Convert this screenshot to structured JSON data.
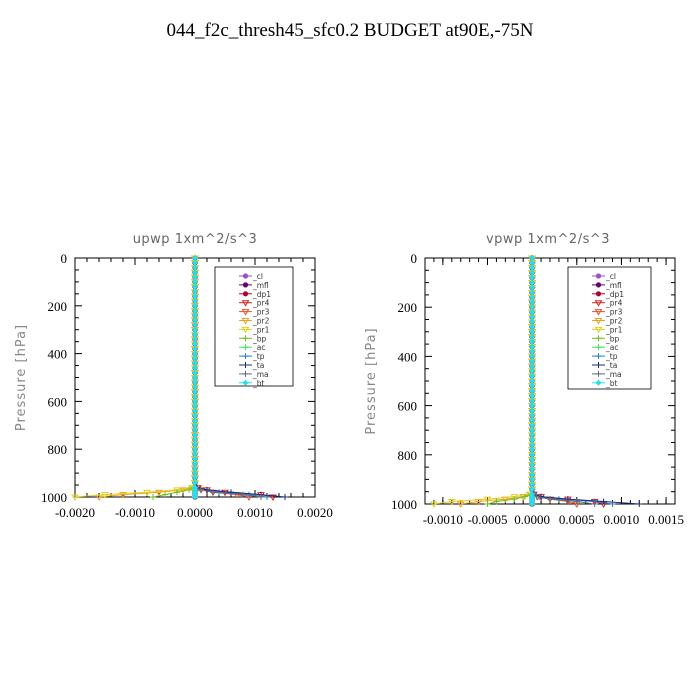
{
  "title": "044_f2c_thresh45_sfc0.2  BUDGET at90E,-75N",
  "chart_data": [
    {
      "type": "line",
      "title": "upwp   1xm^2/s^3",
      "ylabel": "Pressure  [hPa]",
      "xlim": [
        -0.002,
        0.002
      ],
      "ylim": [
        1000,
        0
      ],
      "x_ticks": [
        -0.002,
        -0.001,
        0.0,
        0.001,
        0.002
      ],
      "x_tick_labels": [
        "-0.0020",
        "-0.0010",
        "0.0000",
        "0.0010",
        "0.0020"
      ],
      "y_ticks": [
        0,
        200,
        400,
        600,
        800,
        1000
      ],
      "y_tick_labels": [
        "0",
        "200",
        "400",
        "600",
        "800",
        "1000"
      ],
      "legend": [
        "_cl",
        "_mfl",
        "_dp1",
        "_pr4",
        "_pr3",
        "_pr2",
        "_pr1",
        "_bp",
        "_ac",
        "_tp",
        "_ta",
        "_ma",
        "_bt"
      ],
      "legend_position": "top-right",
      "pressure": [
        0,
        20,
        40,
        60,
        80,
        100,
        120,
        140,
        160,
        180,
        200,
        220,
        240,
        260,
        280,
        300,
        320,
        340,
        360,
        380,
        400,
        420,
        440,
        460,
        480,
        500,
        520,
        540,
        560,
        580,
        600,
        620,
        640,
        660,
        680,
        700,
        720,
        740,
        760,
        780,
        800,
        820,
        840,
        860,
        880,
        900,
        920,
        940,
        960,
        970,
        980,
        990,
        1000
      ],
      "near_surface_pressure": [
        940,
        960,
        970,
        980,
        990,
        1000
      ],
      "series": [
        {
          "name": "_cl",
          "color": "#9a4fd0",
          "x_surface": [
            0,
            0,
            0,
            0,
            0,
            0
          ]
        },
        {
          "name": "_mfl",
          "color": "#6a006a",
          "x_surface": [
            0,
            0,
            0,
            0,
            0,
            0
          ]
        },
        {
          "name": "_dp1",
          "color": "#b0003a",
          "x_surface": [
            0,
            0,
            0,
            0,
            0,
            0
          ]
        },
        {
          "name": "_pr4",
          "color": "#d42020",
          "x_surface": [
            0,
            5e-05,
            0.0002,
            0.0005,
            0.0011,
            0.0013
          ]
        },
        {
          "name": "_pr3",
          "color": "#e8502a",
          "x_surface": [
            0,
            3e-05,
            0.0001,
            0.0003,
            0.0007,
            0.0009
          ]
        },
        {
          "name": "_pr2",
          "color": "#f0a020",
          "x_surface": [
            0,
            -3e-05,
            -0.0002,
            -0.0006,
            -0.0012,
            -0.0016
          ]
        },
        {
          "name": "_pr1",
          "color": "#e0d020",
          "x_surface": [
            0,
            -5e-05,
            -0.0003,
            -0.0008,
            -0.0015,
            -0.002
          ]
        },
        {
          "name": "_bp",
          "color": "#70c020",
          "x_surface": [
            0,
            -2e-05,
            -0.0001,
            -0.0003,
            -0.0005,
            -0.0007
          ]
        },
        {
          "name": "_ac",
          "color": "#40e060",
          "x_surface": [
            0,
            0,
            0,
            0,
            0,
            0
          ]
        },
        {
          "name": "_tp",
          "color": "#3080c0",
          "x_surface": [
            0,
            2e-05,
            0.0001,
            0.0004,
            0.0009,
            0.0012
          ]
        },
        {
          "name": "_ta",
          "color": "#1a2a80",
          "x_surface": [
            0,
            3e-05,
            0.0002,
            0.0006,
            0.0011,
            0.0015
          ]
        },
        {
          "name": "_ma",
          "color": "#607080",
          "x_surface": [
            0,
            1e-05,
            0.0001,
            0.0003,
            0.0008,
            0.0011
          ]
        },
        {
          "name": "_bt",
          "color": "#20e0f0",
          "x_surface": [
            0,
            0,
            0,
            0,
            0,
            0
          ]
        }
      ]
    },
    {
      "type": "line",
      "title": "vpwp   1xm^2/s^3",
      "ylabel": "Pressure  [hPa]",
      "xlim": [
        -0.0012,
        0.0016
      ],
      "ylim": [
        1000,
        0
      ],
      "x_ticks": [
        -0.001,
        -0.0005,
        0.0,
        0.0005,
        0.001,
        0.0015
      ],
      "x_tick_labels": [
        "-0.0010",
        "-0.0005",
        "0.0000",
        "0.0005",
        "0.0010",
        "0.0015"
      ],
      "y_ticks": [
        0,
        200,
        400,
        600,
        800,
        1000
      ],
      "y_tick_labels": [
        "0",
        "200",
        "400",
        "600",
        "800",
        "1000"
      ],
      "legend": [
        "_cl",
        "_mfl",
        "_dp1",
        "_pr4",
        "_pr3",
        "_pr2",
        "_pr1",
        "_bp",
        "_ac",
        "_tp",
        "_ta",
        "_ma",
        "_bt"
      ],
      "legend_position": "top-right",
      "pressure": [
        0,
        20,
        40,
        60,
        80,
        100,
        120,
        140,
        160,
        180,
        200,
        220,
        240,
        260,
        280,
        300,
        320,
        340,
        360,
        380,
        400,
        420,
        440,
        460,
        480,
        500,
        520,
        540,
        560,
        580,
        600,
        620,
        640,
        660,
        680,
        700,
        720,
        740,
        760,
        780,
        800,
        820,
        840,
        860,
        880,
        900,
        920,
        940,
        960,
        970,
        980,
        990,
        1000
      ],
      "near_surface_pressure": [
        940,
        960,
        970,
        980,
        990,
        1000
      ],
      "series": [
        {
          "name": "_cl",
          "color": "#9a4fd0",
          "x_surface": [
            0,
            0,
            0,
            0,
            0,
            0
          ]
        },
        {
          "name": "_mfl",
          "color": "#6a006a",
          "x_surface": [
            0,
            0,
            0,
            0,
            0,
            0
          ]
        },
        {
          "name": "_dp1",
          "color": "#b0003a",
          "x_surface": [
            0,
            0,
            0,
            0,
            0,
            0
          ]
        },
        {
          "name": "_pr4",
          "color": "#d42020",
          "x_surface": [
            0,
            2e-05,
            0.0001,
            0.0004,
            0.0007,
            0.0008
          ]
        },
        {
          "name": "_pr3",
          "color": "#e8502a",
          "x_surface": [
            0,
            1e-05,
            6e-05,
            0.0002,
            0.0004,
            0.0005
          ]
        },
        {
          "name": "_pr2",
          "color": "#f0a020",
          "x_surface": [
            0,
            -2e-05,
            -0.0001,
            -0.0003,
            -0.0006,
            -0.0008
          ]
        },
        {
          "name": "_pr1",
          "color": "#e0d020",
          "x_surface": [
            0,
            -3e-05,
            -0.0002,
            -0.0005,
            -0.0009,
            -0.0011
          ]
        },
        {
          "name": "_bp",
          "color": "#70c020",
          "x_surface": [
            0,
            -1e-05,
            -8e-05,
            -0.0002,
            -0.0004,
            -0.0005
          ]
        },
        {
          "name": "_ac",
          "color": "#40e060",
          "x_surface": [
            0,
            0,
            0,
            0,
            0,
            0
          ]
        },
        {
          "name": "_tp",
          "color": "#3080c0",
          "x_surface": [
            0,
            1e-05,
            8e-05,
            0.0003,
            0.0007,
            0.0009
          ]
        },
        {
          "name": "_ta",
          "color": "#1a2a80",
          "x_surface": [
            0,
            2e-05,
            0.0001,
            0.0004,
            0.0008,
            0.0012
          ]
        },
        {
          "name": "_ma",
          "color": "#607080",
          "x_surface": [
            0,
            1e-05,
            5e-05,
            0.0002,
            0.0005,
            0.0007
          ]
        },
        {
          "name": "_bt",
          "color": "#20e0f0",
          "x_surface": [
            0,
            0,
            0,
            0,
            0,
            0
          ]
        }
      ]
    }
  ]
}
